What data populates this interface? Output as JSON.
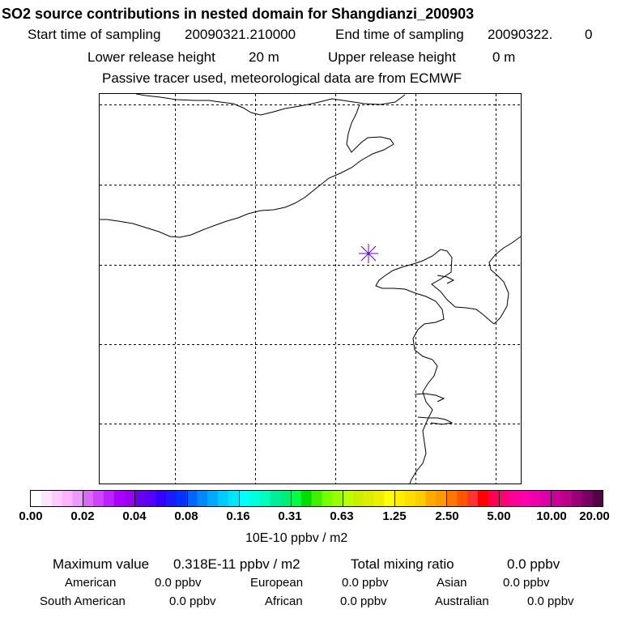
{
  "header": {
    "title": "SO2 source contributions in nested domain for Shangdianzi_200903",
    "start_label": "Start time of sampling",
    "start_value": "20090321.210000",
    "end_label": "End time of sampling",
    "end_value": "20090322.",
    "end_suffix": "0",
    "lower_label": "Lower release height",
    "lower_value": "20 m",
    "upper_label": "Upper release height",
    "upper_value": "0 m",
    "note": "Passive tracer used, meteorological data are from ECMWF"
  },
  "map": {
    "marker_label": "Shangdianzi station marker",
    "marker_color": "#6600cc"
  },
  "colorbar": {
    "ticks": [
      "0.00",
      "0.02",
      "0.04",
      "0.08",
      "0.16",
      "0.31",
      "0.63",
      "1.25",
      "2.50",
      "5.00",
      "10.00",
      "20.00"
    ],
    "unit": "10E-10 ppbv / m2",
    "colors": [
      "#ffffff",
      "#ffe6ff",
      "#ffccff",
      "#ffb3ff",
      "#ee99ff",
      "#dd66ff",
      "#cc44ff",
      "#bb22ff",
      "#aa00ff",
      "#9900ee",
      "#6600ee",
      "#5500ff",
      "#3300ff",
      "#1a1aff",
      "#0033ff",
      "#0066ff",
      "#0088ff",
      "#00aaff",
      "#00ccff",
      "#00e6ff",
      "#00ffff",
      "#00ffdd",
      "#00ffbb",
      "#00ee99",
      "#00ee77",
      "#00ff44",
      "#00dd00",
      "#44ee00",
      "#77ff00",
      "#99ff00",
      "#bbff00",
      "#ccee00",
      "#ddee00",
      "#eeee00",
      "#ffff00",
      "#ffee00",
      "#ffdd00",
      "#ffcc00",
      "#ffaa00",
      "#ff9900",
      "#ff7700",
      "#ff5500",
      "#ff3333",
      "#ff0000",
      "#ff0055",
      "#ff0077",
      "#ff0099",
      "#ff00aa",
      "#ee00aa",
      "#dd00aa",
      "#cc0099",
      "#bb0088",
      "#990077",
      "#770066",
      "#550044"
    ]
  },
  "stats": {
    "max_label": "Maximum value",
    "max_value": "0.318E-11 ppbv / m2",
    "total_label": "Total mixing ratio",
    "total_value": "0.0 ppbv",
    "american_label": "American",
    "american_value": "0.0 ppbv",
    "european_label": "European",
    "european_value": "0.0 ppbv",
    "asian_label": "Asian",
    "asian_value": "0.0 ppbv",
    "south_american_label": "South American",
    "south_american_value": "0.0 ppbv",
    "african_label": "African",
    "african_value": "0.0 ppbv",
    "australian_label": "Australian",
    "australian_value": "0.0 ppbv"
  }
}
